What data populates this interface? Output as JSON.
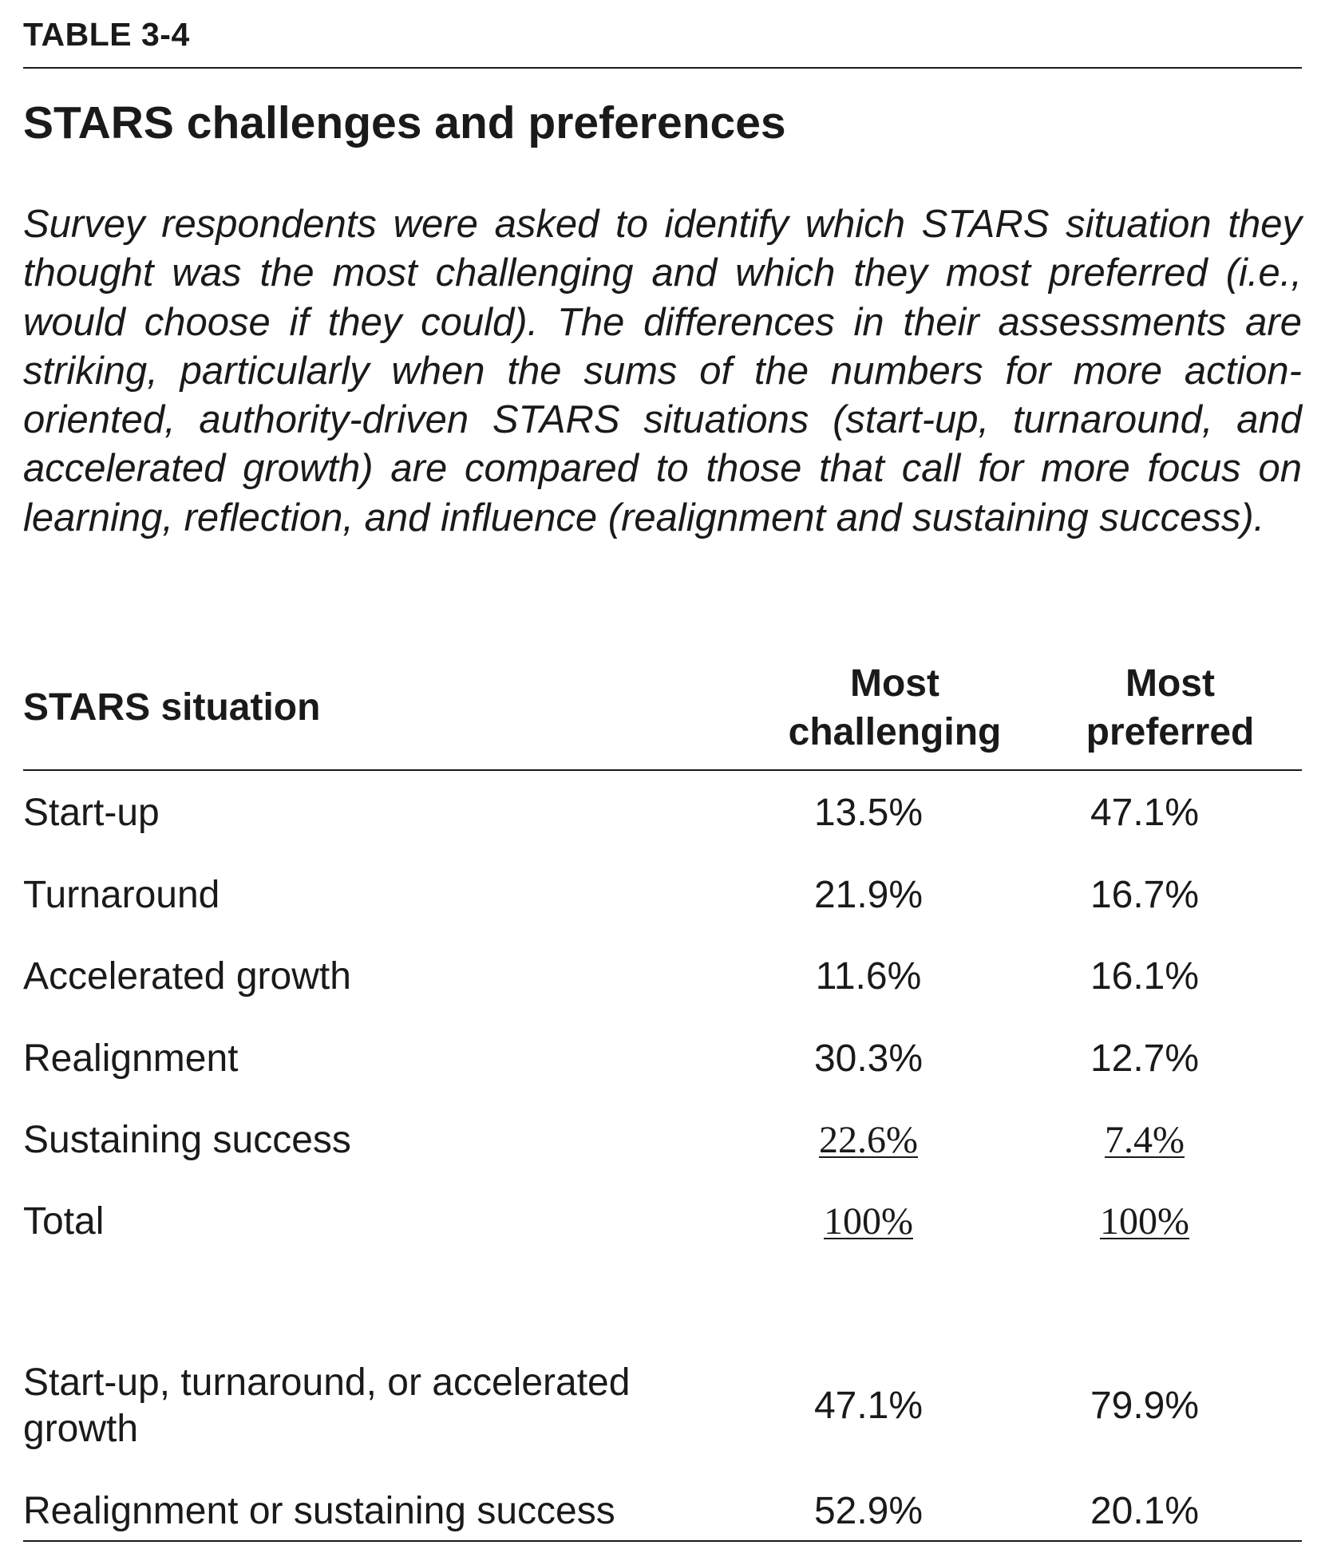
{
  "table_label": "TABLE 3-4",
  "title": "STARS challenges and preferences",
  "caption": "Survey respondents were asked to identify which STARS situation they thought was the most challenging and which they most preferred (i.e., would choose if they could). The differences in their assessments are striking, particularly when the sums of the numbers for more action-oriented, authority-driven STARS situations (start-up, turnaround, and accelerated growth) are compared to those that call for more focus on learning, reflection, and influence (realignment and sustaining success).",
  "headers": {
    "situation": "STARS situation",
    "challenging_line1": "Most",
    "challenging_line2": "challenging",
    "preferred_line1": "Most",
    "preferred_line2": "preferred"
  },
  "rows": [
    {
      "label": "Start-up",
      "challenging": "13.5%",
      "preferred": "47.1%"
    },
    {
      "label": "Turnaround",
      "challenging": "21.9%",
      "preferred": "16.7%"
    },
    {
      "label": "Accelerated growth",
      "challenging": "11.6%",
      "preferred": "16.1%"
    },
    {
      "label": "Realignment",
      "challenging": "30.3%",
      "preferred": "12.7%"
    },
    {
      "label": "Sustaining success",
      "challenging": "22.6%",
      "preferred": "7.4%"
    },
    {
      "label": "Total",
      "challenging": "100%",
      "preferred": "100%"
    }
  ],
  "summary": [
    {
      "label": "Start-up, turnaround, or accelerated growth",
      "challenging": "47.1%",
      "preferred": "79.9%"
    },
    {
      "label": "Realignment or sustaining success",
      "challenging": "52.9%",
      "preferred": "20.1%"
    }
  ]
}
